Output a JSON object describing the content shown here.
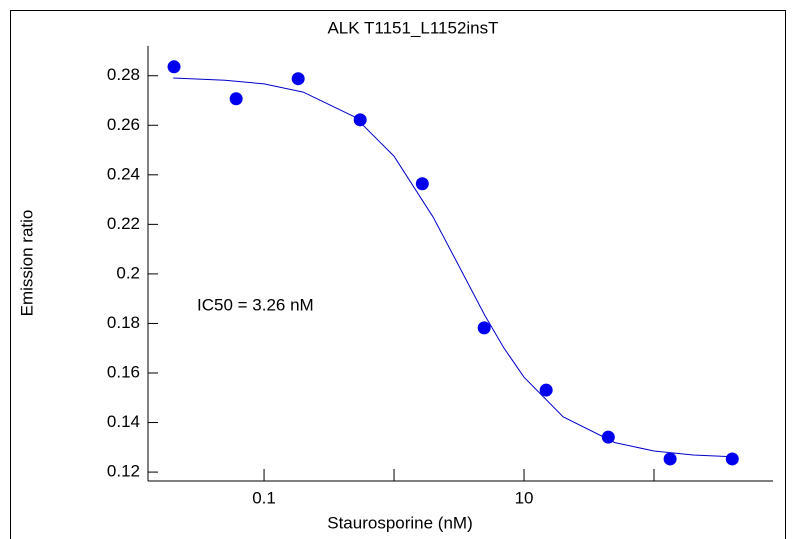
{
  "chart_data": {
    "type": "scatter",
    "title": "ALK  T1151_L1152insT",
    "x_label": "Staurosporine (nM)",
    "y_label": "Emission ratio",
    "annotation": "IC50  =  3.26  nM",
    "x_log": true,
    "x": [
      0.0203,
      0.061,
      0.183,
      0.549,
      1.65,
      4.94,
      14.8,
      44.5,
      133,
      400
    ],
    "values": [
      0.2836,
      0.2707,
      0.2788,
      0.2622,
      0.2364,
      0.1782,
      0.1531,
      0.1341,
      0.1253,
      0.1253
    ],
    "color": "#0000ee",
    "fit": {
      "color": "#0000cc",
      "x": [
        0.02,
        0.05,
        0.1,
        0.2,
        0.5,
        1,
        2,
        3.2,
        5,
        7,
        10,
        20,
        50,
        100,
        200,
        400
      ],
      "values": [
        0.2791,
        0.2782,
        0.2767,
        0.2734,
        0.2633,
        0.2475,
        0.2229,
        0.2026,
        0.1832,
        0.1701,
        0.1583,
        0.1423,
        0.1319,
        0.1285,
        0.1269,
        0.1262
      ]
    },
    "xlim": [
      0.0128,
      823
    ],
    "ylim": [
      0.1164,
      0.292
    ],
    "xticks": [
      0.1,
      10
    ],
    "xminor": [
      1,
      100
    ],
    "yticks": [
      0.12,
      0.14,
      0.16,
      0.18,
      0.2,
      0.22,
      0.24,
      0.26,
      0.28
    ]
  }
}
